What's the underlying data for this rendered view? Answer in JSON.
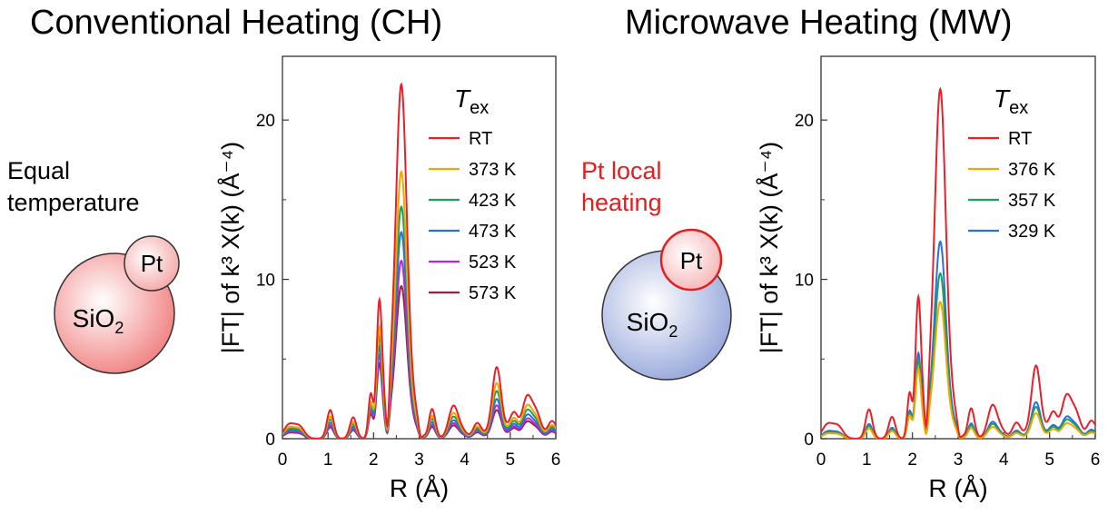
{
  "left": {
    "heading": "Conventional Heating (CH)",
    "note_lines": [
      "Equal",
      "temperature"
    ],
    "particle": "Pt",
    "support": "SiO",
    "support_sub": "2"
  },
  "right": {
    "heading": "Microwave Heating (MW)",
    "note_lines": [
      "Pt local",
      "heating"
    ],
    "particle": "Pt",
    "support": "SiO",
    "support_sub": "2"
  },
  "colors": {
    "support_left": "#f07878",
    "support_right": "#8ea0d8",
    "red": "#e8202a",
    "orange": "#f0a800",
    "green": "#1fa05a",
    "blue": "#2a6fe0",
    "purple": "#b428e6",
    "maroon": "#a0203a"
  },
  "chart_data": [
    {
      "type": "line",
      "ylabel": "|FT| of k³ X(k) (Å⁻⁴)",
      "xlabel": "R (Å)",
      "xlim": [
        0,
        6
      ],
      "ylim": [
        0,
        24
      ],
      "xticks": [
        0,
        1,
        2,
        3,
        4,
        5,
        6
      ],
      "yticks": [
        0,
        10,
        20
      ],
      "legend_title": "T",
      "legend_title_sub": "ex",
      "legend_position": "top-right",
      "series": [
        {
          "name": "RT",
          "color": "#e8202a",
          "main_peak": 22.3,
          "pre_peak": 8.4,
          "tail": 4.5
        },
        {
          "name": "373 K",
          "color": "#f0a800",
          "main_peak": 16.8,
          "pre_peak": 6.8,
          "tail": 3.5
        },
        {
          "name": "423 K",
          "color": "#1fa05a",
          "main_peak": 14.6,
          "pre_peak": 6.2,
          "tail": 3.0
        },
        {
          "name": "473 K",
          "color": "#2a6fe0",
          "main_peak": 13.0,
          "pre_peak": 5.6,
          "tail": 2.5
        },
        {
          "name": "523 K",
          "color": "#b428e6",
          "main_peak": 11.2,
          "pre_peak": 5.1,
          "tail": 2.1
        },
        {
          "name": "573 K",
          "color": "#a0203a",
          "main_peak": 9.6,
          "pre_peak": 4.6,
          "tail": 1.8
        }
      ]
    },
    {
      "type": "line",
      "ylabel": "|FT| of k³ X(k) (Å⁻⁴)",
      "xlabel": "R (Å)",
      "xlim": [
        0,
        6
      ],
      "ylim": [
        0,
        24
      ],
      "xticks": [
        0,
        1,
        2,
        3,
        4,
        5,
        6
      ],
      "yticks": [
        0,
        10,
        20
      ],
      "legend_title": "T",
      "legend_title_sub": "ex",
      "legend_position": "top-right",
      "series": [
        {
          "name": "RT",
          "color": "#e8202a",
          "main_peak": 22.0,
          "pre_peak": 8.6,
          "tail": 4.6
        },
        {
          "name": "376 K",
          "color": "#f0a800",
          "main_peak": 8.6,
          "pre_peak": 4.3,
          "tail": 1.6
        },
        {
          "name": "357 K",
          "color": "#1fa05a",
          "main_peak": 10.4,
          "pre_peak": 4.8,
          "tail": 2.0
        },
        {
          "name": "329 K",
          "color": "#2a6fe0",
          "main_peak": 12.4,
          "pre_peak": 5.2,
          "tail": 2.3
        }
      ]
    }
  ]
}
